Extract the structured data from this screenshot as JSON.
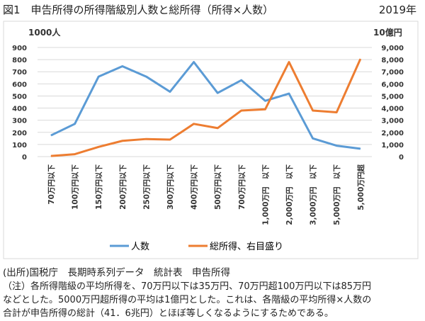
{
  "header": {
    "title": "図1　申告所得の所得階級別人数と総所得（所得×人数）",
    "year": "2019年"
  },
  "chart_data": {
    "type": "line",
    "title": "申告所得の所得階級別人数と総所得（所得×人数）",
    "left_unit": "1000人",
    "right_unit": "10億円",
    "categories": [
      "70万円以下",
      "100万円以下",
      "150万円以下",
      "200万円以下",
      "250万円以下",
      "300万円以下",
      "400万円以下",
      "500万円以下",
      "700万円以下",
      "1,000万円　以下",
      "2,000万円　以下",
      "3,000万円　以下",
      "5,000万円　以下",
      "5,000万円超"
    ],
    "left_axis": {
      "range": [
        0,
        900
      ],
      "ticks": [
        "0",
        "100",
        "200",
        "300",
        "400",
        "500",
        "600",
        "700",
        "800",
        "900"
      ]
    },
    "right_axis": {
      "range": [
        0,
        9000
      ],
      "ticks": [
        "0",
        "1,000",
        "2,000",
        "3,000",
        "4,000",
        "5,000",
        "6,000",
        "7,000",
        "8,000",
        "9,000"
      ]
    },
    "grid": true,
    "legend_position": "bottom",
    "series": [
      {
        "name": "人数",
        "axis": "left",
        "color": "#5b9bd5",
        "values": [
          175,
          270,
          660,
          745,
          660,
          535,
          780,
          525,
          630,
          460,
          520,
          150,
          90,
          65
        ]
      },
      {
        "name": "総所得、右目盛り",
        "axis": "right",
        "color": "#ed7d31",
        "values": [
          50,
          200,
          800,
          1300,
          1450,
          1400,
          2700,
          2350,
          3800,
          3900,
          7800,
          3800,
          3650,
          8050
        ]
      }
    ]
  },
  "notes": {
    "source": "(出所)国税庁　長期時系列データ　統計表　申告所得",
    "note1": "（注）各所得階級の平均所得を、70万円以下は35万円、70万円超100万円以下は85万円",
    "note2": "などとした。5000万円超所得の平均は1億円とした。これは、各階級の平均所得×人数の",
    "note3": "合計が申告所得の総計（41．6兆円）とほぼ等しくなるようにするためである。"
  }
}
